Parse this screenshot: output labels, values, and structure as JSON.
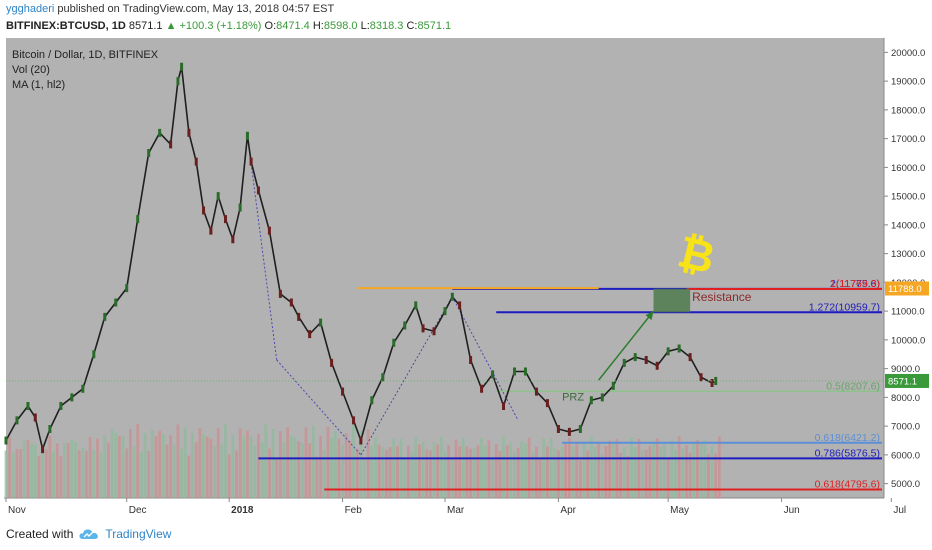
{
  "header": {
    "user": "ygghaderi",
    "published_text": "published on TradingView.com, May 13, 2018 04:57 EST"
  },
  "ohlc": {
    "symbol": "BITFINEX:BTCUSD, 1D",
    "last": "8571.1",
    "change": "▲ +100.3 (+1.18%)",
    "o_label": "O:",
    "o": "8471.4",
    "h_label": "H:",
    "h": "8598.0",
    "l_label": "L:",
    "l": "8318.3",
    "c_label": "C:",
    "c": "8571.1"
  },
  "legend": {
    "title": "Bitcoin / Dollar, 1D, BITFINEX",
    "vol": "Vol (20)",
    "ma": "MA (1, hl2)"
  },
  "annotations": {
    "resistance": "Resistance",
    "prz": "PRZ",
    "bitcoin_logo": "₿"
  },
  "price_tags": {
    "current": "8571.1",
    "resistance_level": "11788.0"
  },
  "levels": [
    {
      "label": "2(11775.6)",
      "value": 11775.6,
      "color": "#1d1dbf"
    },
    {
      "label": "1(11769.3)",
      "value": 11769.3,
      "color": "#e02020"
    },
    {
      "label": "1.272(10959.7)",
      "value": 10959.7,
      "color": "#1d1dbf"
    },
    {
      "label": "0.5(8207.6)",
      "value": 8207.6,
      "color": "#8bc38b"
    },
    {
      "label": "0.618(6421.2)",
      "value": 6421.2,
      "color": "#5b8fd8"
    },
    {
      "label": "0.786(5876.5)",
      "value": 5876.5,
      "color": "#1d1dbf"
    },
    {
      "label": "0.618(4795.6)",
      "value": 4795.6,
      "color": "#e02020"
    }
  ],
  "footer": {
    "created_with": "Created with",
    "brand": "TradingView"
  },
  "chart_data": {
    "type": "line",
    "title": "Bitcoin / Dollar, 1D, BITFINEX",
    "xlabel": "",
    "ylabel": "",
    "ylim": [
      4500,
      20500
    ],
    "y_ticks": [
      5000,
      6000,
      7000,
      8000,
      9000,
      10000,
      11000,
      12000,
      13000,
      14000,
      15000,
      16000,
      17000,
      18000,
      19000,
      20000
    ],
    "y_tick_labels": [
      "5000.0",
      "6000.0",
      "7000.0",
      "8000.0",
      "9000.0",
      "10000.0",
      "11000.0",
      "12000.0",
      "13000.0",
      "14000.0",
      "15000.0",
      "16000.0",
      "17000.0",
      "18000.0",
      "19000.0",
      "20000.0"
    ],
    "x_tick_labels": [
      "Nov",
      "Dec",
      "2018",
      "Feb",
      "Mar",
      "Apr",
      "May",
      "Jun",
      "Jul"
    ],
    "series": [
      {
        "values": [
          [
            0,
            6500
          ],
          [
            3,
            7200
          ],
          [
            6,
            7700
          ],
          [
            8,
            7300
          ],
          [
            10,
            6200
          ],
          [
            12,
            6900
          ],
          [
            15,
            7700
          ],
          [
            18,
            8000
          ],
          [
            21,
            8300
          ],
          [
            24,
            9500
          ],
          [
            27,
            10800
          ],
          [
            30,
            11300
          ],
          [
            33,
            11800
          ],
          [
            36,
            14200
          ],
          [
            39,
            16500
          ],
          [
            42,
            17200
          ],
          [
            45,
            16800
          ],
          [
            47,
            19000
          ],
          [
            48,
            19500
          ],
          [
            50,
            17200
          ],
          [
            52,
            16200
          ],
          [
            54,
            14500
          ],
          [
            56,
            13800
          ],
          [
            58,
            15000
          ],
          [
            60,
            14200
          ],
          [
            62,
            13500
          ],
          [
            64,
            14600
          ],
          [
            66,
            17100
          ],
          [
            67,
            16200
          ],
          [
            69,
            15200
          ],
          [
            72,
            13800
          ],
          [
            75,
            11600
          ],
          [
            78,
            11300
          ],
          [
            80,
            10800
          ],
          [
            83,
            10200
          ],
          [
            86,
            10600
          ],
          [
            89,
            9200
          ],
          [
            92,
            8200
          ],
          [
            95,
            7200
          ],
          [
            97,
            6500
          ],
          [
            100,
            7900
          ],
          [
            103,
            8700
          ],
          [
            106,
            9900
          ],
          [
            109,
            10500
          ],
          [
            112,
            11200
          ],
          [
            114,
            10400
          ],
          [
            117,
            10300
          ],
          [
            120,
            11000
          ],
          [
            122,
            11500
          ],
          [
            124,
            11200
          ],
          [
            127,
            9300
          ],
          [
            130,
            8300
          ],
          [
            133,
            8800
          ],
          [
            136,
            7700
          ],
          [
            139,
            8900
          ],
          [
            142,
            8900
          ],
          [
            145,
            8200
          ],
          [
            148,
            7800
          ],
          [
            151,
            6900
          ],
          [
            154,
            6800
          ],
          [
            157,
            6900
          ],
          [
            160,
            7900
          ],
          [
            163,
            8000
          ],
          [
            166,
            8400
          ],
          [
            169,
            9200
          ],
          [
            172,
            9400
          ],
          [
            175,
            9300
          ],
          [
            178,
            9100
          ],
          [
            181,
            9600
          ],
          [
            184,
            9700
          ],
          [
            187,
            9400
          ],
          [
            190,
            8700
          ],
          [
            193,
            8500
          ],
          [
            194,
            8571
          ]
        ]
      }
    ],
    "x_range": [
      0,
      240
    ],
    "month_tick_positions": [
      0,
      33,
      61,
      92,
      120,
      151,
      181,
      212,
      242
    ]
  }
}
